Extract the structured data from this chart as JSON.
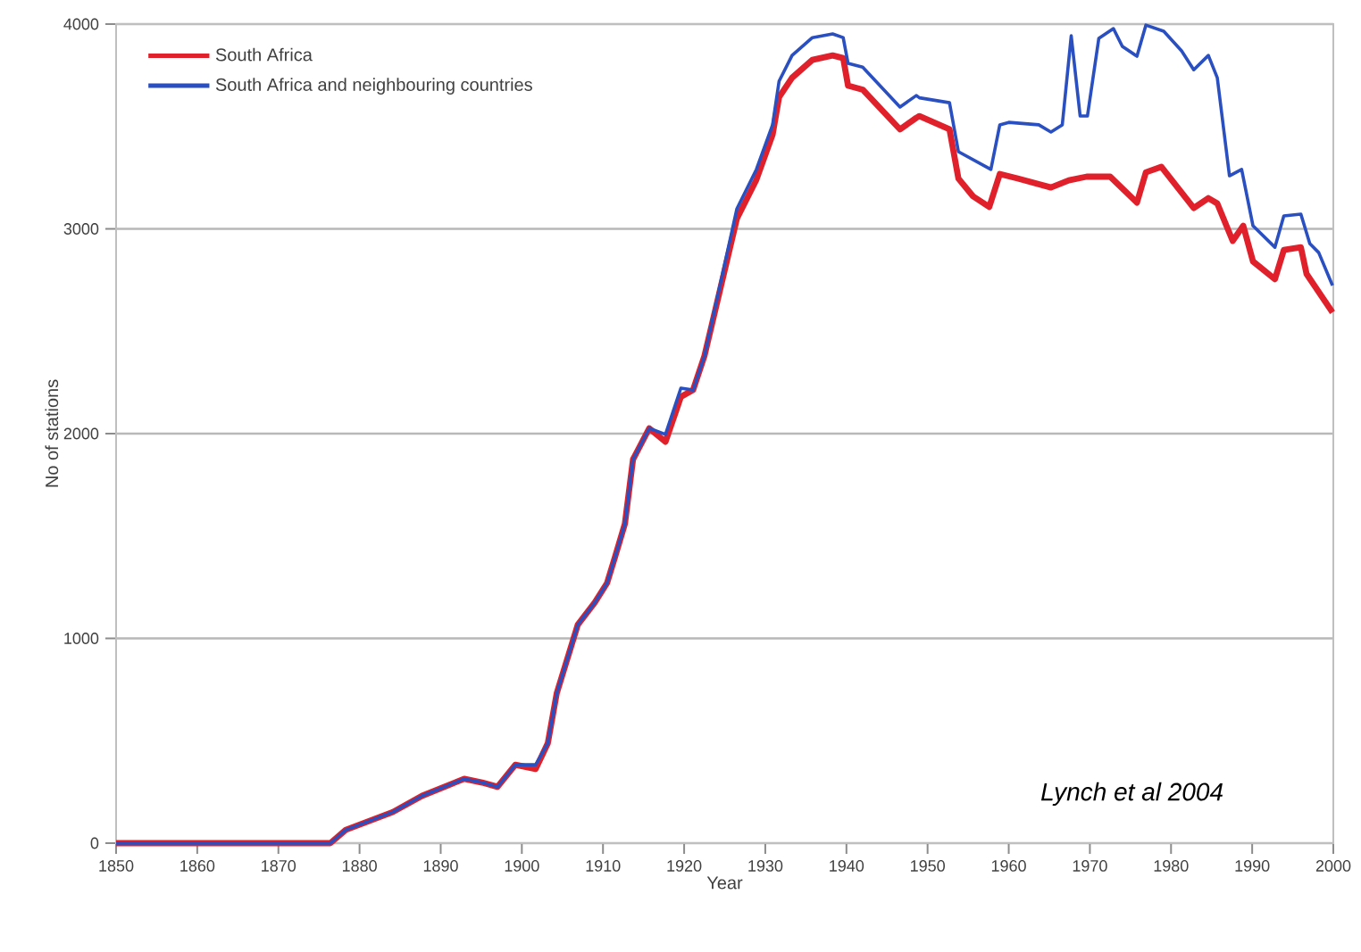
{
  "chart_data": {
    "type": "line",
    "xlabel": "Year",
    "ylabel": "No of stations",
    "xlim": [
      1850,
      2000
    ],
    "ylim": [
      0,
      4000
    ],
    "xticks": [
      1850,
      1860,
      1870,
      1880,
      1890,
      1900,
      1910,
      1920,
      1930,
      1940,
      1950,
      1960,
      1970,
      1980,
      1990,
      2000
    ],
    "yticks": [
      0,
      1000,
      2000,
      3000,
      4000
    ],
    "grid": "y",
    "legend": "top left",
    "line_style": "solid",
    "marker": "none",
    "annotations": [
      "Lynch et al 2004"
    ],
    "series": [
      {
        "name": "South Africa",
        "color": "#e0202a",
        "x": [
          1850,
          1876.4,
          1878.3,
          1884.1,
          1887.7,
          1892.9,
          1895.1,
          1897,
          1899.2,
          1901.7,
          1903.2,
          1904.3,
          1906.9,
          1909,
          1910.5,
          1911.5,
          1912.7,
          1913.7,
          1915.7,
          1917.7,
          1919.6,
          1921.1,
          1922.5,
          1926.5,
          1928.9,
          1930.9,
          1931.7,
          1933.3,
          1935.8,
          1938.3,
          1939.6,
          1940.2,
          1942,
          1946.6,
          1948.6,
          1949,
          1952.7,
          1953.8,
          1955.6,
          1957.6,
          1958.9,
          1961.1,
          1965.2,
          1967.4,
          1969.6,
          1972.5,
          1975.8,
          1976.9,
          1978.8,
          1982.8,
          1984.6,
          1985.7,
          1987.6,
          1988.9,
          1990.1,
          1992.8,
          1993.9,
          1996,
          1996.7,
          1999.9
        ],
        "values": [
          0,
          0,
          65,
          152,
          231,
          314,
          296,
          275,
          383,
          362,
          488,
          732,
          1067,
          1176,
          1270,
          1400,
          1560,
          1874,
          2026,
          1960,
          2180,
          2213,
          2379,
          3050,
          3240,
          3460,
          3643,
          3738,
          3825,
          3847,
          3834,
          3699,
          3680,
          3486,
          3542,
          3551,
          3486,
          3246,
          3159,
          3107,
          3268,
          3246,
          3202,
          3237,
          3255,
          3255,
          3128,
          3276,
          3303,
          3102,
          3150,
          3124,
          2941,
          3015,
          2841,
          2754,
          2897,
          2910,
          2780,
          2592
        ]
      },
      {
        "name": "South Africa and neighbouring countries",
        "color": "#2a4fc0",
        "x": [
          1850,
          1876.4,
          1878.3,
          1884.1,
          1887.7,
          1892.9,
          1895.1,
          1897,
          1899.2,
          1901.7,
          1903.2,
          1904.3,
          1906.9,
          1909,
          1910.5,
          1911.5,
          1912.7,
          1913.7,
          1915.7,
          1917.7,
          1919.6,
          1921.1,
          1922.5,
          1926.5,
          1928.9,
          1930.9,
          1931.7,
          1933.3,
          1935.8,
          1938.3,
          1939.6,
          1940.2,
          1942,
          1946.6,
          1948.6,
          1949,
          1952.7,
          1953.8,
          1957.8,
          1958.9,
          1960,
          1963.7,
          1965.2,
          1966.6,
          1967.7,
          1968.8,
          1969.7,
          1971.1,
          1972.9,
          1974,
          1975.8,
          1976.9,
          1979.1,
          1981.3,
          1982.8,
          1984.6,
          1985.7,
          1987.2,
          1988.7,
          1990.1,
          1992.8,
          1993.9,
          1996,
          1997.1,
          1998.2,
          1999.9
        ],
        "values": [
          0,
          0,
          65,
          152,
          231,
          314,
          296,
          275,
          383,
          383,
          488,
          732,
          1067,
          1176,
          1270,
          1400,
          1560,
          1874,
          2026,
          1996,
          2222,
          2213,
          2379,
          3098,
          3290,
          3508,
          3721,
          3847,
          3934,
          3952,
          3934,
          3808,
          3790,
          3595,
          3651,
          3640,
          3616,
          3377,
          3290,
          3508,
          3520,
          3508,
          3473,
          3508,
          3943,
          3551,
          3551,
          3930,
          3978,
          3891,
          3843,
          3995,
          3965,
          3869,
          3777,
          3847,
          3738,
          3259,
          3290,
          3015,
          2910,
          3063,
          3072,
          2928,
          2884,
          2723
        ]
      }
    ]
  }
}
